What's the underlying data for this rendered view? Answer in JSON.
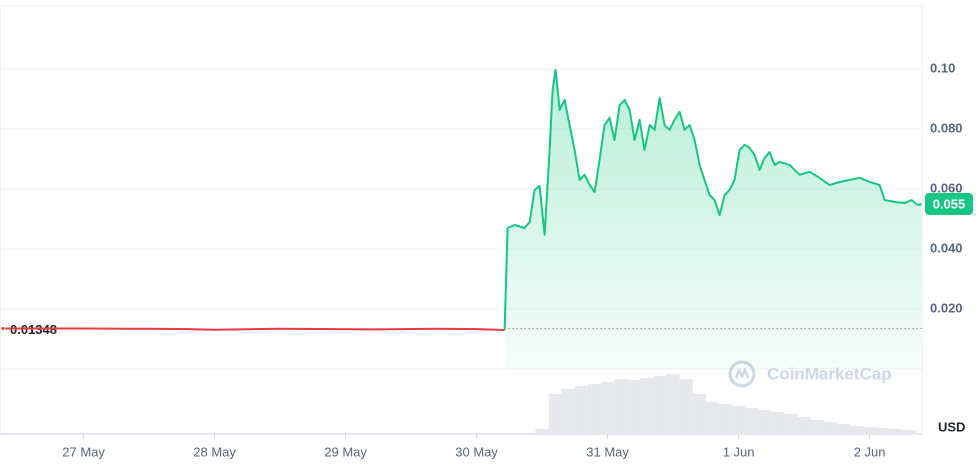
{
  "chart_data": {
    "type": "line",
    "xlim": [
      -0.6,
      6.4
    ],
    "xticks": [
      {
        "value": 0,
        "label": "27 May"
      },
      {
        "value": 1,
        "label": "28 May"
      },
      {
        "value": 2,
        "label": "29 May"
      },
      {
        "value": 3,
        "label": "30 May"
      },
      {
        "value": 4,
        "label": "31 May"
      },
      {
        "value": 5,
        "label": "1 Jun"
      },
      {
        "value": 6,
        "label": "2 Jun"
      }
    ],
    "ylim": [
      0,
      0.1213
    ],
    "yticks": [
      {
        "value": 0.02,
        "label": "0.020"
      },
      {
        "value": 0.04,
        "label": "0.040"
      },
      {
        "value": 0.06,
        "label": "0.060"
      },
      {
        "value": 0.08,
        "label": "0.080"
      },
      {
        "value": 0.1,
        "label": "0.10"
      }
    ],
    "grid": true,
    "series": [
      {
        "color": "#ea3943",
        "fill": false,
        "x": [
          -0.6,
          0,
          0.5,
          0.8,
          1.0,
          1.5,
          2.2,
          2.7,
          3.0,
          3.214
        ],
        "values": [
          0.0135,
          0.0135,
          0.0134,
          0.0133,
          0.0131,
          0.0134,
          0.0132,
          0.0134,
          0.0133,
          0.013
        ]
      },
      {
        "color": "#16c784",
        "fill": true,
        "x": [
          3.214,
          3.237,
          3.29,
          3.366,
          3.405,
          3.443,
          3.481,
          3.519,
          3.557,
          3.58,
          3.603,
          3.634,
          3.672,
          3.71,
          3.748,
          3.786,
          3.824,
          3.863,
          3.901,
          3.939,
          3.977,
          4.015,
          4.053,
          4.092,
          4.13,
          4.168,
          4.206,
          4.244,
          4.282,
          4.321,
          4.359,
          4.397,
          4.435,
          4.473,
          4.511,
          4.55,
          4.588,
          4.626,
          4.664,
          4.702,
          4.74,
          4.779,
          4.817,
          4.855,
          4.893,
          4.931,
          4.969,
          5.008,
          5.046,
          5.084,
          5.122,
          5.16,
          5.198,
          5.237,
          5.275,
          5.313,
          5.389,
          5.466,
          5.542,
          5.618,
          5.695,
          5.771,
          5.847,
          5.924,
          6.0,
          6.076,
          6.115,
          6.191,
          6.267,
          6.321,
          6.366,
          6.397
        ],
        "values": [
          0.013,
          0.047,
          0.048,
          0.047,
          0.049,
          0.0597,
          0.061,
          0.0447,
          0.073,
          0.093,
          0.0997,
          0.0863,
          0.0897,
          0.0813,
          0.073,
          0.063,
          0.0647,
          0.0613,
          0.059,
          0.0697,
          0.0813,
          0.0837,
          0.0763,
          0.088,
          0.0897,
          0.0863,
          0.0763,
          0.083,
          0.073,
          0.0813,
          0.0797,
          0.0903,
          0.0813,
          0.0797,
          0.083,
          0.0857,
          0.0797,
          0.0813,
          0.0763,
          0.068,
          0.063,
          0.058,
          0.0563,
          0.0513,
          0.058,
          0.0597,
          0.063,
          0.073,
          0.0747,
          0.0737,
          0.0713,
          0.0663,
          0.0703,
          0.0723,
          0.068,
          0.069,
          0.068,
          0.0647,
          0.0657,
          0.0637,
          0.0613,
          0.0623,
          0.063,
          0.0637,
          0.0623,
          0.0613,
          0.0563,
          0.0557,
          0.0553,
          0.0563,
          0.0547,
          0.055
        ]
      }
    ],
    "volume": {
      "color": "#e6e8ec",
      "x": [
        3.5,
        3.6,
        3.7,
        3.8,
        3.9,
        4.0,
        4.1,
        4.2,
        4.3,
        4.4,
        4.5,
        4.6,
        4.7,
        4.8,
        4.9,
        5.0,
        5.1,
        5.2,
        5.3,
        5.4,
        5.5,
        5.6,
        5.7,
        5.8,
        5.9,
        6.0,
        6.1,
        6.2,
        6.3
      ],
      "values": [
        5,
        40,
        45,
        48,
        50,
        52,
        55,
        54,
        56,
        58,
        60,
        55,
        40,
        32,
        30,
        28,
        26,
        24,
        22,
        20,
        17,
        14,
        12,
        10,
        8,
        7,
        6,
        5,
        4
      ]
    },
    "reference": {
      "value": 0.01348,
      "label": "0.01348"
    },
    "current": {
      "value": 0.055,
      "label": "0.055"
    },
    "currency": "USD",
    "watermark": "CoinMarketCap"
  }
}
